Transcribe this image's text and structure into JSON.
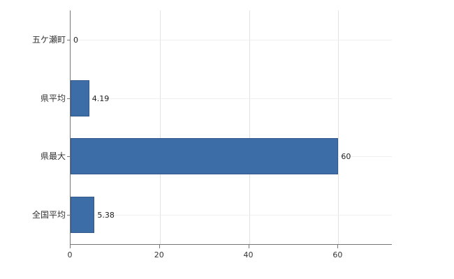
{
  "chart_data": {
    "type": "bar",
    "orientation": "horizontal",
    "title": "",
    "xlabel": "",
    "ylabel": "",
    "categories": [
      "五ケ瀬町",
      "県平均",
      "県最大",
      "全国平均"
    ],
    "values": [
      0,
      4.19,
      60,
      5.38
    ],
    "value_labels": [
      "0",
      "4.19",
      "60",
      "5.38"
    ],
    "x_ticks": [
      0,
      20,
      40,
      60
    ],
    "x_tick_labels": [
      "0",
      "20",
      "40",
      "60"
    ],
    "xlim": [
      0,
      72
    ],
    "grid": true,
    "legend": "none",
    "bar_color": "#3d6da6",
    "bar_border_color": "#33598c",
    "axis_color": "#767676",
    "gridline_color": "#e2e2e2"
  }
}
